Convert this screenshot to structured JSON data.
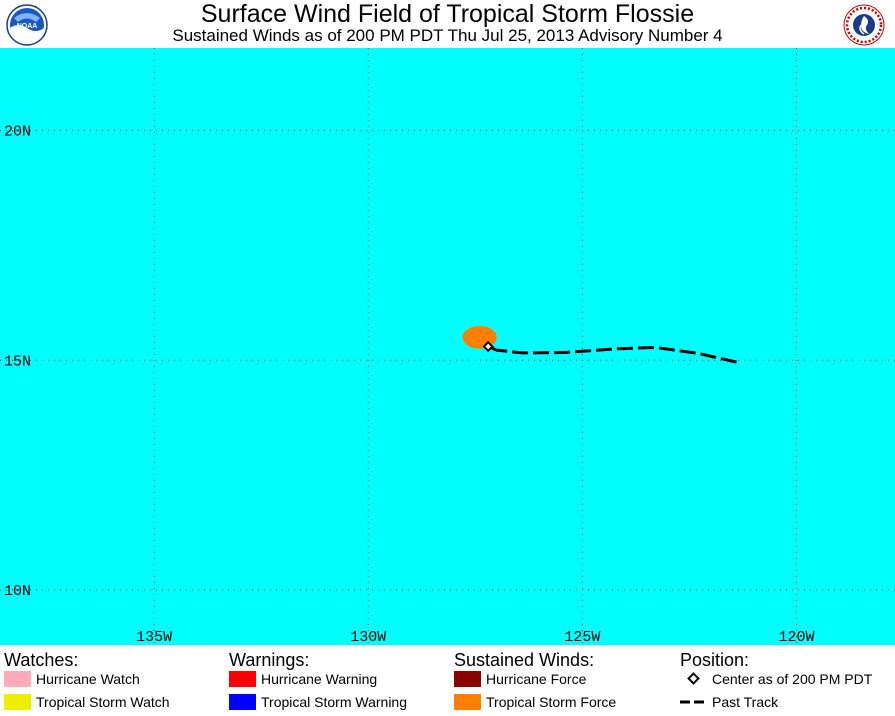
{
  "header": {
    "title": "Surface Wind Field of Tropical Storm Flossie",
    "subtitle": "Sustained Winds as of 200 PM PDT Thu Jul 25, 2013    Advisory Number 4",
    "left_logo_text": "NOAA"
  },
  "map": {
    "ocean_color": "#00ffff",
    "grid_color": "#333333",
    "lon_range": [
      -138.6,
      -117.7
    ],
    "lat_range": [
      8.8,
      21.8
    ],
    "lon_ticks": [
      {
        "value": -135,
        "label": "135W"
      },
      {
        "value": -130,
        "label": "130W"
      },
      {
        "value": -125,
        "label": "125W"
      },
      {
        "value": -120,
        "label": "120W"
      }
    ],
    "lat_ticks": [
      {
        "value": 20,
        "label": "20N"
      },
      {
        "value": 15,
        "label": "15N"
      },
      {
        "value": 10,
        "label": "10N"
      }
    ],
    "storm_center": {
      "lon": -127.2,
      "lat": 15.3
    },
    "ts_force_wind_color": "#ff8000",
    "ts_force_wind_field": {
      "lon": -127.4,
      "lat": 15.5,
      "lon_radius": 0.4,
      "lat_radius": 0.25
    },
    "past_track": [
      {
        "lon": -121.4,
        "lat": 14.96
      },
      {
        "lon": -122.3,
        "lat": 15.15
      },
      {
        "lon": -123.3,
        "lat": 15.28
      },
      {
        "lon": -124.2,
        "lat": 15.25
      },
      {
        "lon": -125.4,
        "lat": 15.17
      },
      {
        "lon": -126.4,
        "lat": 15.16
      },
      {
        "lon": -127.0,
        "lat": 15.22
      },
      {
        "lon": -127.2,
        "lat": 15.3
      }
    ]
  },
  "legend": {
    "watches": {
      "heading": "Watches:",
      "items": [
        {
          "label": "Hurricane Watch",
          "color": "#ffaabb"
        },
        {
          "label": "Tropical Storm Watch",
          "color": "#eeee00"
        }
      ]
    },
    "warnings": {
      "heading": "Warnings:",
      "items": [
        {
          "label": "Hurricane Warning",
          "color": "#ff0000"
        },
        {
          "label": "Tropical Storm Warning",
          "color": "#0000ff"
        }
      ]
    },
    "winds": {
      "heading": "Sustained Winds:",
      "items": [
        {
          "label": "Hurricane Force",
          "color": "#8b0000"
        },
        {
          "label": "Tropical Storm Force",
          "color": "#ff8000"
        }
      ]
    },
    "position": {
      "heading": "Position:",
      "center_label": "Center as of 200 PM PDT",
      "track_label": "Past Track"
    }
  }
}
